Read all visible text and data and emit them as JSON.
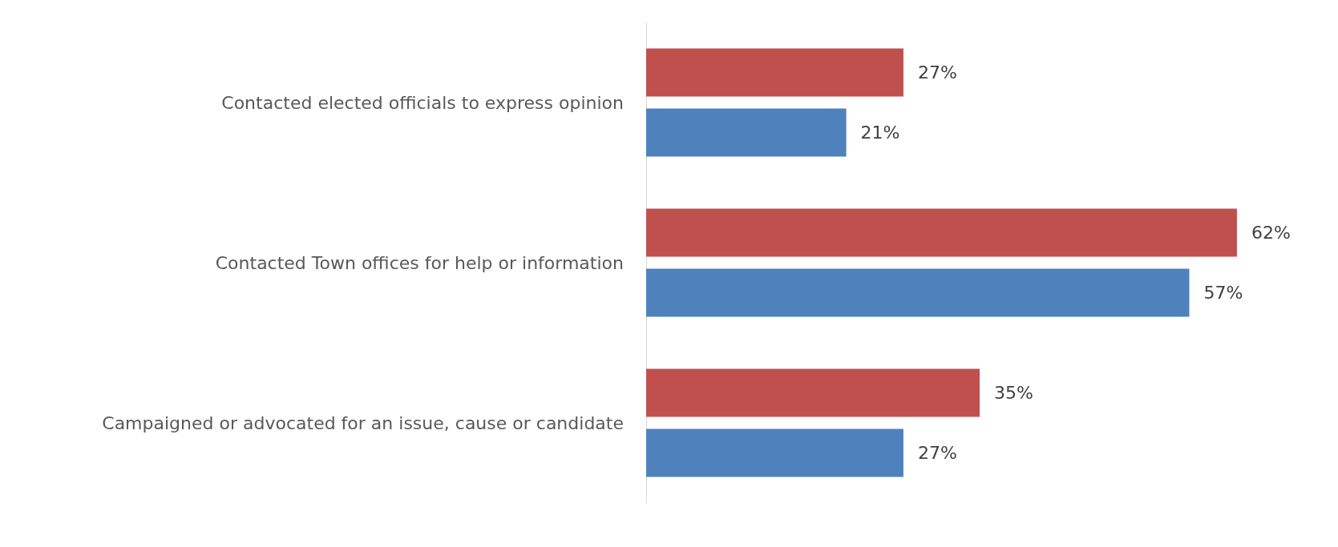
{
  "chart_data": {
    "type": "bar",
    "orientation": "horizontal",
    "categories": [
      "Contacted elected officials to express opinion",
      "Contacted Town offices for help or information",
      "Campaigned or advocated for an issue, cause or candidate"
    ],
    "series": [
      {
        "color": "#c0504d",
        "values": [
          27,
          62,
          35
        ],
        "value_labels": [
          "27%",
          "62%",
          "35%"
        ]
      },
      {
        "color": "#4f81bd",
        "values": [
          21,
          57,
          27
        ],
        "value_labels": [
          "21%",
          "57%",
          "27%"
        ]
      }
    ]
  }
}
